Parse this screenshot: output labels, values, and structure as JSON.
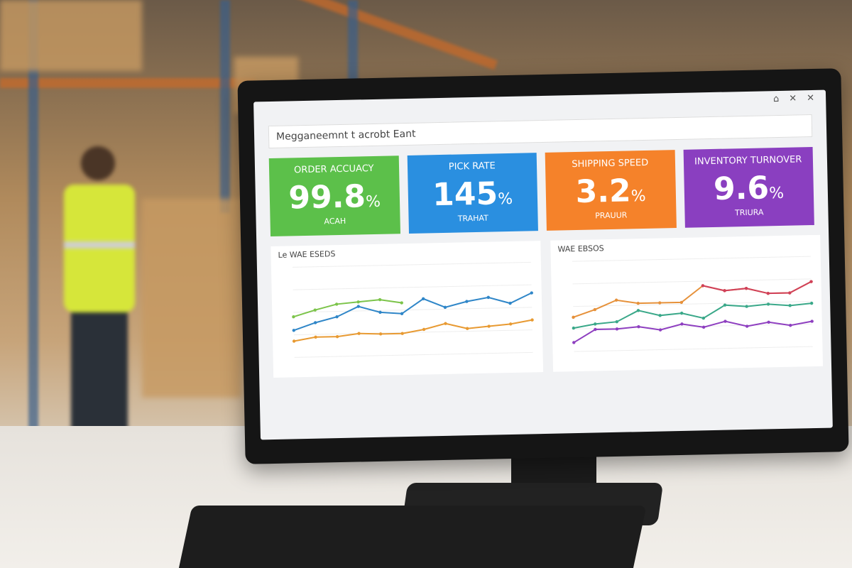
{
  "header": {
    "title": "Megganeemnt t acrobt Eant"
  },
  "kpis": [
    {
      "label": "ORDER ACCUACY",
      "value": "99.8",
      "unit": "%",
      "caption": "ACAH",
      "color": "#5cc04a"
    },
    {
      "label": "PICK RATE",
      "value": "145",
      "unit": "%",
      "caption": "TRAHAT",
      "color": "#2a8fe0"
    },
    {
      "label": "SHIPPING SPEED",
      "value": "3.2",
      "unit": "%",
      "caption": "PRAUUR",
      "color": "#f5822a"
    },
    {
      "label": "INVENTORY TURNOVER",
      "value": "9.6",
      "unit": "%",
      "caption": "TRIURA",
      "color": "#8a3fc0"
    }
  ],
  "chart_data": [
    {
      "type": "line",
      "title": "Le WAE ESEDS",
      "ylim": [
        0,
        100
      ],
      "series": [
        {
          "color": "#7cc44a",
          "values": [
            45,
            52,
            58,
            60,
            62,
            58,
            null,
            null,
            null,
            null,
            null,
            null
          ]
        },
        {
          "color": "#2f86c8",
          "values": [
            30,
            38,
            44,
            55,
            48,
            46,
            62,
            52,
            58,
            62,
            55,
            66
          ]
        },
        {
          "color": "#e89a32",
          "values": [
            18,
            22,
            22,
            25,
            24,
            24,
            28,
            34,
            28,
            30,
            32,
            36
          ]
        }
      ]
    },
    {
      "type": "line",
      "title": "WAE EBSOS",
      "ylim": [
        0,
        100
      ],
      "series": [
        {
          "color": "#e6913a",
          "values": [
            38,
            46,
            56,
            52,
            52,
            52,
            70,
            64,
            66,
            60,
            60,
            72
          ]
        },
        {
          "color": "#d0405a",
          "values": [
            null,
            null,
            null,
            null,
            null,
            null,
            70,
            64,
            66,
            60,
            60,
            72
          ]
        },
        {
          "color": "#3aa889",
          "values": [
            26,
            30,
            32,
            44,
            38,
            40,
            34,
            48,
            46,
            48,
            46,
            48
          ]
        },
        {
          "color": "#8e3fc0",
          "values": [
            10,
            24,
            24,
            26,
            22,
            28,
            24,
            30,
            24,
            28,
            24,
            28
          ]
        }
      ]
    }
  ]
}
